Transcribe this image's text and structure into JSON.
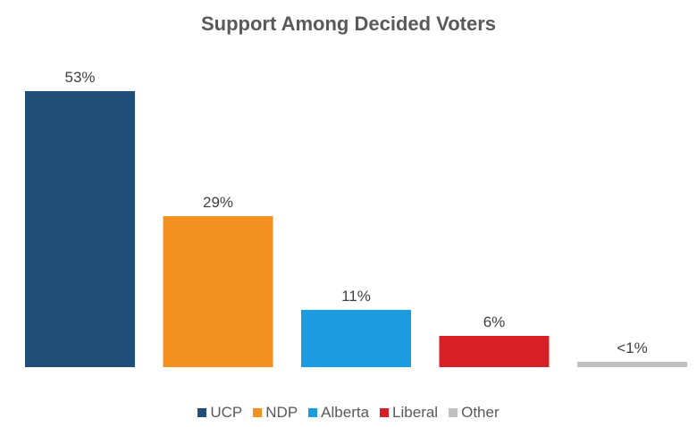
{
  "chart_data": {
    "type": "bar",
    "title": "Support Among Decided Voters",
    "categories": [
      "UCP",
      "NDP",
      "Alberta",
      "Liberal",
      "Other"
    ],
    "values": [
      53,
      29,
      11,
      6,
      0.7
    ],
    "data_labels": [
      "53%",
      "29%",
      "11%",
      "6%",
      "<1%"
    ],
    "colors": [
      "#1f4e79",
      "#f4901e",
      "#1b9be0",
      "#d71f26",
      "#bfbfbf"
    ],
    "ylim": [
      0,
      53
    ],
    "grid": false,
    "legend": "bottom",
    "xlabel": "",
    "ylabel": ""
  }
}
